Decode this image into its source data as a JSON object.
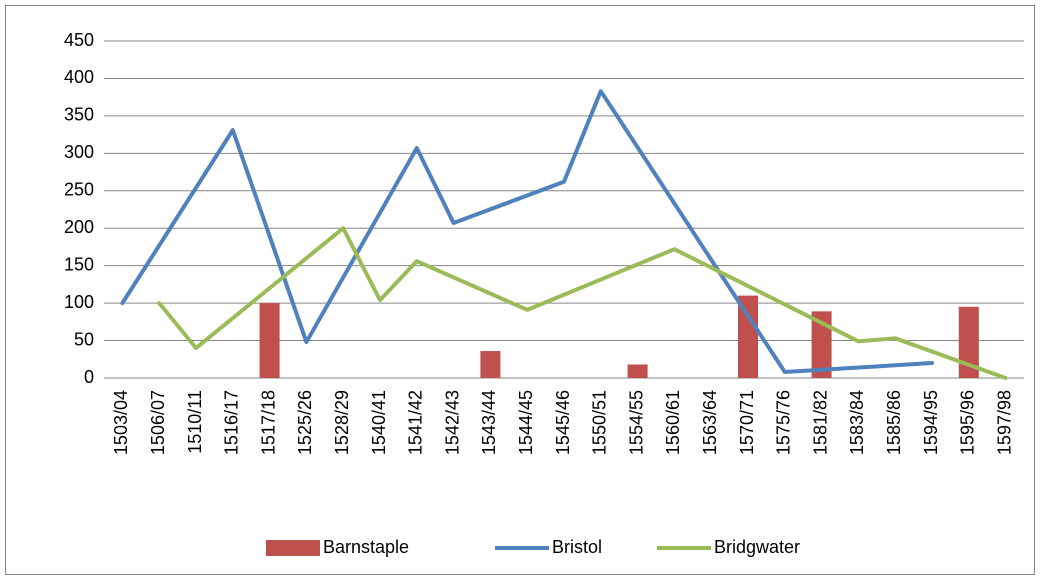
{
  "chart_data": {
    "type": "bar_line",
    "categories": [
      "1503/04",
      "1506/07",
      "1510/11",
      "1516/17",
      "1517/18",
      "1525/26",
      "1528/29",
      "1540/41",
      "1541/42",
      "1542/43",
      "1543/44",
      "1544/45",
      "1545/46",
      "1550/51",
      "1554/55",
      "1560/61",
      "1563/64",
      "1570/71",
      "1575/76",
      "1581/82",
      "1583/84",
      "1585/86",
      "1594/95",
      "1595/96",
      "1597/98"
    ],
    "series": [
      {
        "name": "Barnstaple",
        "type": "bar",
        "color": "#c0504d",
        "values": [
          null,
          null,
          null,
          null,
          100,
          null,
          null,
          null,
          null,
          null,
          36,
          null,
          null,
          null,
          18,
          null,
          null,
          110,
          null,
          89,
          null,
          null,
          null,
          95,
          null
        ]
      },
      {
        "name": "Bristol",
        "type": "line",
        "color": "#4f81bd",
        "values": [
          100,
          null,
          null,
          331,
          null,
          48,
          null,
          null,
          307,
          207,
          null,
          null,
          262,
          383,
          null,
          null,
          null,
          null,
          8,
          null,
          null,
          null,
          20,
          null,
          null
        ]
      },
      {
        "name": "Bridgwater",
        "type": "line",
        "color": "#9bbb59",
        "values": [
          null,
          100,
          40,
          null,
          null,
          null,
          200,
          104,
          156,
          null,
          null,
          91,
          null,
          null,
          null,
          172,
          null,
          null,
          null,
          null,
          49,
          53,
          null,
          null,
          0
        ]
      }
    ],
    "connect_gaps": true,
    "ylim": [
      0,
      450
    ],
    "yticks": [
      0,
      50,
      100,
      150,
      200,
      250,
      300,
      350,
      400,
      450
    ],
    "grid": true,
    "legend": "bottom"
  }
}
